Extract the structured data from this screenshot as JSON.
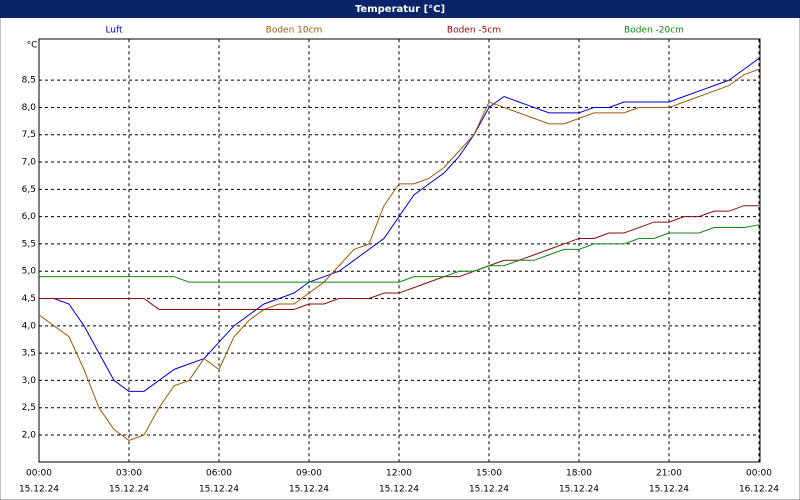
{
  "chart_data": {
    "type": "line",
    "title": "Temperatur [°C]",
    "ylabel": "°C",
    "x": [
      0,
      0.5,
      1,
      1.5,
      2,
      2.5,
      3,
      3.5,
      4,
      4.5,
      5,
      5.5,
      6,
      6.5,
      7,
      7.5,
      8,
      8.5,
      9,
      9.5,
      10,
      10.5,
      11,
      11.5,
      12,
      12.5,
      13,
      13.5,
      14,
      14.5,
      15,
      15.5,
      16,
      16.5,
      17,
      17.5,
      18,
      18.5,
      19,
      19.5,
      20,
      20.5,
      21,
      21.5,
      22,
      22.5,
      23,
      23.5,
      24
    ],
    "series": [
      {
        "name": "Luft",
        "color": "#0000cc",
        "values": [
          4.5,
          4.5,
          4.4,
          4.0,
          3.5,
          3.0,
          2.8,
          2.8,
          3.0,
          3.2,
          3.3,
          3.4,
          3.7,
          4.0,
          4.2,
          4.4,
          4.5,
          4.6,
          4.8,
          4.9,
          5.0,
          5.2,
          5.4,
          5.6,
          6.0,
          6.4,
          6.6,
          6.8,
          7.1,
          7.5,
          8.0,
          8.2,
          8.1,
          8.0,
          7.9,
          7.9,
          7.9,
          8.0,
          8.0,
          8.1,
          8.1,
          8.1,
          8.1,
          8.2,
          8.3,
          8.4,
          8.5,
          8.7,
          8.9
        ]
      },
      {
        "name": "Boden 10cm",
        "color": "#a05a10",
        "values": [
          4.2,
          4.0,
          3.8,
          3.2,
          2.5,
          2.1,
          1.9,
          2.0,
          2.5,
          2.9,
          3.0,
          3.4,
          3.2,
          3.8,
          4.1,
          4.3,
          4.4,
          4.4,
          4.6,
          4.8,
          5.1,
          5.4,
          5.5,
          6.2,
          6.6,
          6.6,
          6.7,
          6.9,
          7.2,
          7.5,
          8.1,
          8.0,
          7.9,
          7.8,
          7.7,
          7.7,
          7.8,
          7.9,
          7.9,
          7.9,
          8.0,
          8.0,
          8.0,
          8.1,
          8.2,
          8.3,
          8.4,
          8.6,
          8.7
        ]
      },
      {
        "name": "Boden -5cm",
        "color": "#8b0a0a",
        "values": [
          4.5,
          4.5,
          4.5,
          4.5,
          4.5,
          4.5,
          4.5,
          4.5,
          4.3,
          4.3,
          4.3,
          4.3,
          4.3,
          4.3,
          4.3,
          4.3,
          4.3,
          4.3,
          4.4,
          4.4,
          4.5,
          4.5,
          4.5,
          4.6,
          4.6,
          4.7,
          4.8,
          4.9,
          4.9,
          5.0,
          5.1,
          5.2,
          5.2,
          5.3,
          5.4,
          5.5,
          5.6,
          5.6,
          5.7,
          5.7,
          5.8,
          5.9,
          5.9,
          6.0,
          6.0,
          6.1,
          6.1,
          6.2,
          6.2
        ]
      },
      {
        "name": "Boden -20cm",
        "color": "#108a10",
        "values": [
          4.9,
          4.9,
          4.9,
          4.9,
          4.9,
          4.9,
          4.9,
          4.9,
          4.9,
          4.9,
          4.8,
          4.8,
          4.8,
          4.8,
          4.8,
          4.8,
          4.8,
          4.8,
          4.8,
          4.8,
          4.8,
          4.8,
          4.8,
          4.8,
          4.8,
          4.9,
          4.9,
          4.9,
          5.0,
          5.0,
          5.1,
          5.1,
          5.2,
          5.2,
          5.3,
          5.4,
          5.4,
          5.5,
          5.5,
          5.5,
          5.6,
          5.6,
          5.7,
          5.7,
          5.7,
          5.8,
          5.8,
          5.8,
          5.85
        ]
      }
    ],
    "xlim": [
      0,
      24
    ],
    "xticks": [
      {
        "value": 0,
        "label": "00:00",
        "date": "15.12.24"
      },
      {
        "value": 3,
        "label": "03:00",
        "date": "15.12.24"
      },
      {
        "value": 6,
        "label": "06:00",
        "date": "15.12.24"
      },
      {
        "value": 9,
        "label": "09:00",
        "date": "15.12.24"
      },
      {
        "value": 12,
        "label": "12:00",
        "date": "15.12.24"
      },
      {
        "value": 15,
        "label": "15:00",
        "date": "15.12.24"
      },
      {
        "value": 18,
        "label": "18:00",
        "date": "15.12.24"
      },
      {
        "value": 21,
        "label": "21:00",
        "date": "15.12.24"
      },
      {
        "value": 24,
        "label": "00:00",
        "date": "16.12.24"
      }
    ],
    "ylim": [
      1.5,
      9.25
    ],
    "yticks": [
      {
        "value": 2,
        "label": "2,0"
      },
      {
        "value": 2.5,
        "label": "2,5"
      },
      {
        "value": 3,
        "label": "3,0"
      },
      {
        "value": 3.5,
        "label": "3,5"
      },
      {
        "value": 4,
        "label": "4,0"
      },
      {
        "value": 4.5,
        "label": "4,5"
      },
      {
        "value": 5,
        "label": "5,0"
      },
      {
        "value": 5.5,
        "label": "5,5"
      },
      {
        "value": 6,
        "label": "6,0"
      },
      {
        "value": 6.5,
        "label": "6,5"
      },
      {
        "value": 7,
        "label": "7,0"
      },
      {
        "value": 7.5,
        "label": "7,5"
      },
      {
        "value": 8,
        "label": "8,0"
      },
      {
        "value": 8.5,
        "label": "8,5"
      }
    ],
    "grid": true
  }
}
